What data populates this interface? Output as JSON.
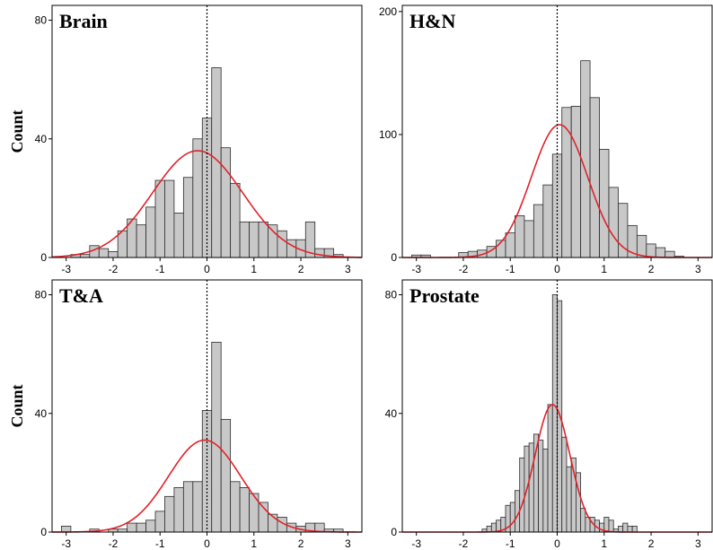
{
  "chart_data": [
    {
      "type": "bar",
      "title": "Brain",
      "ylabel": "Count",
      "xlim": [
        -3.3,
        3.3
      ],
      "ylim": [
        0,
        85
      ],
      "xticks": [
        -3,
        -2,
        -1,
        0,
        1,
        2,
        3
      ],
      "yticks": [
        0,
        40,
        80
      ],
      "bin_width": 0.2,
      "bins_start": [
        -3.1,
        -2.9,
        -2.7,
        -2.5,
        -2.3,
        -2.1,
        -1.9,
        -1.7,
        -1.5,
        -1.3,
        -1.1,
        -0.9,
        -0.7,
        -0.5,
        -0.3,
        -0.1,
        0.1,
        0.3,
        0.5,
        0.7,
        0.9,
        1.1,
        1.3,
        1.5,
        1.7,
        1.9,
        2.1,
        2.3,
        2.5,
        2.7
      ],
      "values": [
        0,
        1,
        1,
        4,
        3,
        2,
        9,
        13,
        11,
        17,
        26,
        26,
        15,
        27,
        40,
        47,
        64,
        37,
        25,
        12,
        12,
        12,
        11,
        9,
        6,
        6,
        12,
        3,
        3,
        1
      ],
      "fit_curve": {
        "mean": -0.2,
        "peak": 36,
        "sd": 0.96
      },
      "reference_line_x": 0
    },
    {
      "type": "bar",
      "title": "H&N",
      "ylabel": "",
      "xlim": [
        -3.3,
        3.3
      ],
      "ylim": [
        0,
        205
      ],
      "xticks": [
        -3,
        -2,
        -1,
        0,
        1,
        2,
        3
      ],
      "yticks": [
        0,
        100,
        200
      ],
      "bin_width": 0.2,
      "bins_start": [
        -3.1,
        -2.9,
        -2.7,
        -2.5,
        -2.3,
        -2.1,
        -1.9,
        -1.7,
        -1.5,
        -1.3,
        -1.1,
        -0.9,
        -0.7,
        -0.5,
        -0.3,
        -0.1,
        0.1,
        0.3,
        0.5,
        0.7,
        0.9,
        1.1,
        1.3,
        1.5,
        1.7,
        1.9,
        2.1,
        2.3,
        2.5,
        2.7
      ],
      "values": [
        2,
        2,
        0,
        0,
        0,
        4,
        5,
        6,
        9,
        14,
        20,
        34,
        30,
        43,
        59,
        84,
        122,
        123,
        160,
        130,
        88,
        57,
        44,
        26,
        18,
        11,
        8,
        5,
        1,
        0
      ],
      "fit_curve": {
        "mean": 0.05,
        "peak": 108,
        "sd": 0.6
      },
      "reference_line_x": 0
    },
    {
      "type": "bar",
      "title": "T&A",
      "ylabel": "Count",
      "xlim": [
        -3.3,
        3.3
      ],
      "ylim": [
        0,
        85
      ],
      "xticks": [
        -3,
        -2,
        -1,
        0,
        1,
        2,
        3
      ],
      "yticks": [
        0,
        40,
        80
      ],
      "bin_width": 0.2,
      "bins_start": [
        -3.1,
        -2.9,
        -2.7,
        -2.5,
        -2.3,
        -2.1,
        -1.9,
        -1.7,
        -1.5,
        -1.3,
        -1.1,
        -0.9,
        -0.7,
        -0.5,
        -0.3,
        -0.1,
        0.1,
        0.3,
        0.5,
        0.7,
        0.9,
        1.1,
        1.3,
        1.5,
        1.7,
        1.9,
        2.1,
        2.3,
        2.5,
        2.7
      ],
      "values": [
        2,
        0,
        0,
        1,
        0,
        1,
        1,
        3,
        3,
        4,
        7,
        12,
        15,
        17,
        17,
        41,
        64,
        38,
        17,
        15,
        13,
        10,
        6,
        5,
        3,
        2,
        3,
        3,
        1,
        1
      ],
      "fit_curve": {
        "mean": -0.05,
        "peak": 31,
        "sd": 0.77
      },
      "reference_line_x": 0
    },
    {
      "type": "bar",
      "title": "Prostate",
      "ylabel": "",
      "xlim": [
        -3.3,
        3.3
      ],
      "ylim": [
        0,
        85
      ],
      "xticks": [
        -3,
        -2,
        -1,
        0,
        1,
        2,
        3
      ],
      "yticks": [
        0,
        40,
        80
      ],
      "bin_width": 0.1,
      "bins_start": [
        -1.6,
        -1.5,
        -1.4,
        -1.3,
        -1.2,
        -1.1,
        -1.0,
        -0.9,
        -0.8,
        -0.7,
        -0.6,
        -0.5,
        -0.4,
        -0.3,
        -0.2,
        -0.1,
        0.0,
        0.1,
        0.2,
        0.3,
        0.4,
        0.5,
        0.6,
        0.7,
        0.8,
        0.9,
        1.0,
        1.1,
        1.2,
        1.3,
        1.4,
        1.5,
        1.6
      ],
      "values": [
        1,
        2,
        3,
        4,
        5,
        9,
        10,
        14,
        25,
        29,
        30,
        33,
        31,
        28,
        43,
        80,
        78,
        32,
        22,
        25,
        20,
        8,
        5,
        5,
        4,
        3,
        5,
        4,
        1,
        2,
        3,
        2,
        2
      ],
      "fit_curve": {
        "mean": -0.1,
        "peak": 43,
        "sd": 0.37
      },
      "reference_line_x": 0
    }
  ]
}
